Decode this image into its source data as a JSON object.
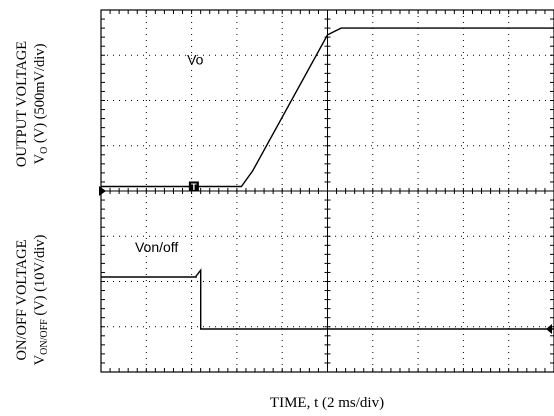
{
  "chart_data": {
    "type": "line",
    "grid": true,
    "divisions": {
      "x": 10,
      "y": 8
    },
    "xlabel": "TIME, t (2 ms/div)",
    "ylabel_top": {
      "line1": "OUTPUT VOLTAGE",
      "line2_main": "V",
      "line2_sub": "O",
      "line2_rest": " (V) (500mV/div)"
    },
    "ylabel_bottom": {
      "line1": "ON/OFF VOLTAGE",
      "line2_main": "V",
      "line2_sub": "ON/OFF",
      "line2_rest": " (V) (10V/div)"
    },
    "trigger_marker": "T",
    "series": [
      {
        "name": "Vo",
        "points": [
          [
            0,
            4.1
          ],
          [
            3.1,
            4.1
          ],
          [
            3.35,
            4.45
          ],
          [
            5.0,
            7.45
          ],
          [
            5.3,
            7.6
          ],
          [
            10,
            7.6
          ]
        ]
      },
      {
        "name": "Von/off",
        "points": [
          [
            0,
            2.1
          ],
          [
            2.1,
            2.1
          ],
          [
            2.1,
            2.12
          ],
          [
            2.2,
            2.25
          ],
          [
            2.2,
            0.95
          ],
          [
            10,
            0.95
          ]
        ]
      }
    ]
  }
}
